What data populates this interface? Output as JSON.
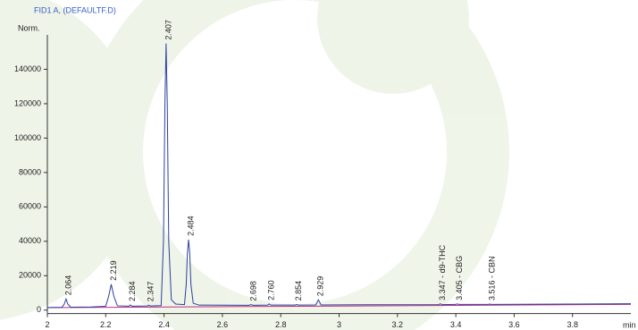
{
  "chart_data": {
    "type": "line",
    "title": "FID1 A, (DEFAULTF.D)",
    "y_label": "Norm.",
    "x_label": "min",
    "xlim": [
      2,
      4
    ],
    "ylim": [
      -2000,
      160000
    ],
    "xticks": [
      2,
      2.2,
      2.4,
      2.6,
      2.8,
      3,
      3.2,
      3.4,
      3.6,
      3.8
    ],
    "yticks": [
      0,
      20000,
      40000,
      60000,
      80000,
      100000,
      120000,
      140000
    ],
    "series": [
      {
        "color": "#2c3f9e",
        "x": [
          2.0,
          2.05,
          2.058,
          2.064,
          2.07,
          2.08,
          2.15,
          2.2,
          2.21,
          2.219,
          2.228,
          2.24,
          2.28,
          2.284,
          2.29,
          2.343,
          2.347,
          2.352,
          2.39,
          2.398,
          2.403,
          2.407,
          2.411,
          2.416,
          2.425,
          2.44,
          2.47,
          2.476,
          2.48,
          2.484,
          2.488,
          2.492,
          2.5,
          2.52,
          2.69,
          2.698,
          2.706,
          2.755,
          2.76,
          2.766,
          2.85,
          2.854,
          2.86,
          2.92,
          2.929,
          2.938,
          3.1,
          3.34,
          3.347,
          3.354,
          3.4,
          3.405,
          3.41,
          3.51,
          3.516,
          3.522,
          3.8,
          4.0
        ],
        "values": [
          1500,
          1600,
          3500,
          6500,
          3500,
          1700,
          1800,
          2200,
          8000,
          15000,
          8000,
          2500,
          2300,
          3000,
          2300,
          2400,
          2900,
          2400,
          2600,
          40000,
          120000,
          155000,
          120000,
          40000,
          6000,
          3500,
          3200,
          15000,
          33000,
          41000,
          33000,
          15000,
          4000,
          2900,
          2800,
          3200,
          2800,
          2900,
          3600,
          2900,
          2900,
          3300,
          2900,
          3000,
          6000,
          3000,
          3100,
          3200,
          3600,
          3200,
          3300,
          3600,
          3300,
          3300,
          3500,
          3300,
          3500,
          3700
        ]
      },
      {
        "color": "#c0307a",
        "x": [
          2.0,
          4.0
        ],
        "values": [
          1400,
          3300
        ]
      }
    ],
    "peak_times": [
      2.064,
      2.219,
      2.284,
      2.347,
      2.407,
      2.484,
      2.698,
      2.76,
      2.854,
      2.929,
      3.347,
      3.405,
      3.516
    ],
    "peak_labels": [
      "2.064",
      "2.219",
      "2.284",
      "2.347",
      "2.407",
      "2.484",
      "2.698",
      "2.760",
      "2.854",
      "2.929",
      "3.347 - d9-THC",
      "3.405 - CBG",
      "3.516 - CBN"
    ]
  }
}
